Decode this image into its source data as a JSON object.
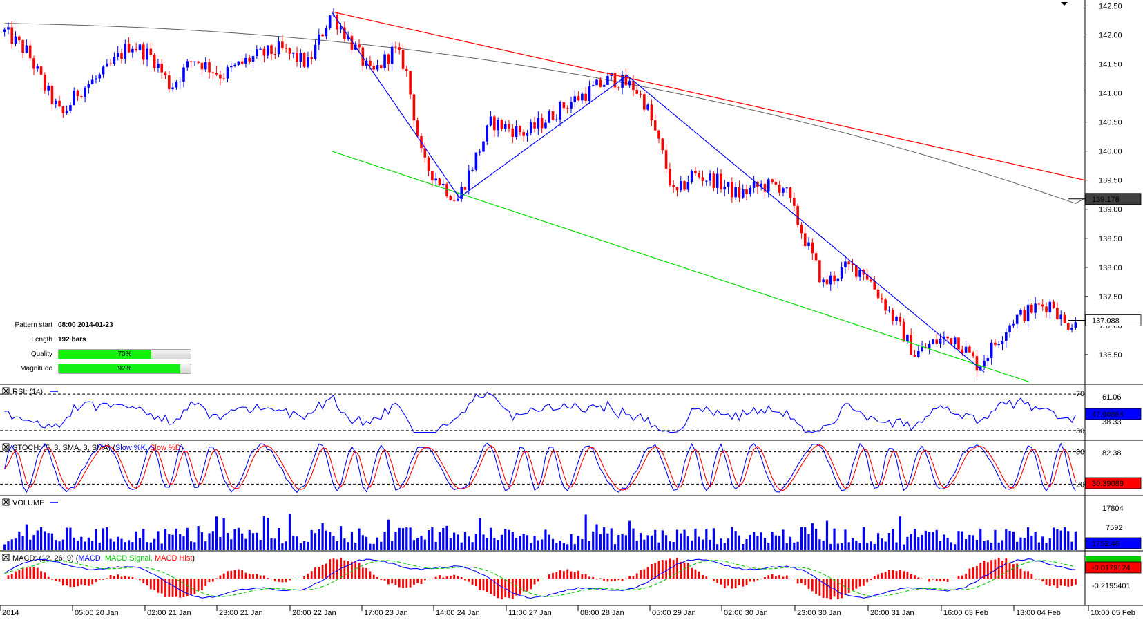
{
  "chart_data": {
    "type": "candlestick",
    "instrument_note": "",
    "main": {
      "ylim": [
        136.0,
        142.6
      ],
      "y_ticks": [
        "142.50",
        "142.00",
        "141.50",
        "141.00",
        "140.50",
        "140.00",
        "139.50",
        "139.00",
        "138.50",
        "138.00",
        "137.50",
        "137.00",
        "136.50"
      ],
      "ma_label": "139.178",
      "last_price_label": "137.088",
      "trend_lines": [
        {
          "color": "#ff0000",
          "from": [
            1,
            142.4
          ],
          "to": [
            2,
            139.5
          ]
        },
        {
          "color": "#00e000",
          "from": [
            1,
            140.0
          ],
          "to": [
            2,
            136.1
          ]
        }
      ]
    },
    "x_ticks": [
      "2014",
      "05:00 20 Jan",
      "02:00 21 Jan",
      "23:00 21 Jan",
      "20:00 22 Jan",
      "17:00 23 Jan",
      "14:00 24 Jan",
      "11:00 27 Jan",
      "08:00 28 Jan",
      "05:00 29 Jan",
      "02:00 30 Jan",
      "23:00 30 Jan",
      "20:00 31 Jan",
      "16:00 03 Feb",
      "13:00 04 Feb",
      "10:00 05 Feb"
    ],
    "pattern_info": {
      "pattern_start_label": "Pattern start",
      "pattern_start": "08:00 2014-01-23",
      "length_label": "Length",
      "length": "192 bars",
      "quality_label": "Quality",
      "quality": 70,
      "quality_text": "70%",
      "magnitude_label": "Magnitude",
      "magnitude": 92,
      "magnitude_text": "92%"
    },
    "panels": {
      "rsi": {
        "title": "RSI: (14)",
        "levels": [
          "70",
          "30"
        ],
        "right_labels": [
          "61.06",
          "38.33"
        ],
        "value": "47.66864"
      },
      "stoch": {
        "title_prefix": "STOCH: (5, 3, SMA, 3, SMA)",
        "legend": [
          "Slow %K",
          "Slow %D"
        ],
        "levels": [
          "80",
          "20"
        ],
        "right_labels": [
          "82.38"
        ],
        "value": "30.39089"
      },
      "volume": {
        "title": "VOLUME",
        "right_labels": [
          "17804",
          "7592"
        ],
        "value": "1752.46"
      },
      "macd": {
        "title_prefix": "MACD: (12, 26, 9)",
        "legend": [
          "MACD",
          "MACD Signal",
          "MACD Hist"
        ],
        "right_labels": [
          "-0.2195401"
        ],
        "value": "-0.0179124"
      }
    },
    "colors": {
      "up": "#0000ff",
      "down": "#ff0000",
      "pattern": "#0000ff",
      "ma": "#606060",
      "rsi": "#0000ff",
      "k": "#0000ff",
      "d": "#ff0000",
      "signal": "#00cc00",
      "hist": "#ff0000"
    }
  }
}
